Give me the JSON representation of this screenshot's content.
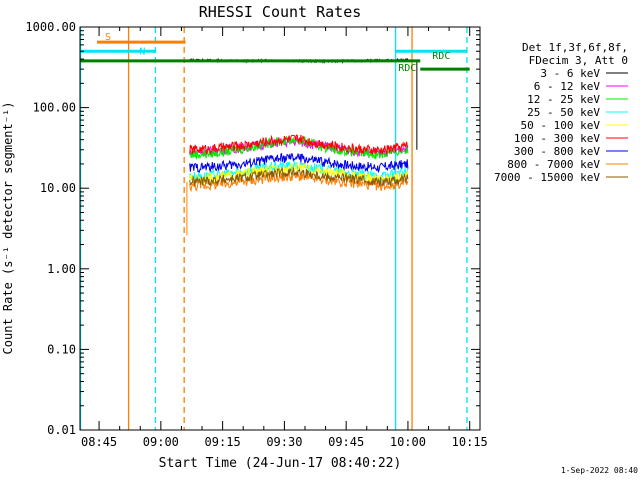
{
  "colors": {
    "background": "#ffffff",
    "axis": "#000000",
    "cyan": "#00e5ee",
    "orange": "#ff7f00",
    "dark_green": "#007f00"
  },
  "chart_data": {
    "type": "line",
    "title": "RHESSI Count Rates",
    "xlabel": "Start Time (24-Jun-17 08:40:22)",
    "ylabel": "Count Rate (s⁻¹ detector segment⁻¹)",
    "yscale": "log",
    "ylim": [
      0.01,
      1000
    ],
    "xlim": [
      "08:40:22",
      "10:17:30"
    ],
    "grid": false,
    "legend_position": "right",
    "legend_header": [
      "Det 1f,3f,6f,8f,",
      "FDecim 3, Att 0"
    ],
    "x_ticks": [
      "08:45",
      "09:00",
      "09:15",
      "09:30",
      "09:45",
      "10:00",
      "10:15"
    ],
    "y_ticks": [
      "0.01",
      "0.10",
      "1.00",
      "10.00",
      "100.00",
      "1000.00"
    ],
    "series": [
      {
        "name": "3 - 6 keV",
        "color": "#000000",
        "x": [
          "09:07",
          "09:13",
          "09:20",
          "09:27",
          "09:33",
          "09:40",
          "09:47",
          "09:53",
          "10:00"
        ],
        "values": [
          390,
          385,
          380,
          385,
          380,
          375,
          380,
          385,
          390
        ]
      },
      {
        "name": "6 - 12 keV",
        "color": "#ff00ff",
        "x": [
          "09:07",
          "09:13",
          "09:20",
          "09:27",
          "09:33",
          "09:40",
          "09:47",
          "09:53",
          "10:00"
        ],
        "values": [
          28,
          29,
          32,
          36,
          38,
          33,
          29,
          27,
          32
        ]
      },
      {
        "name": "12 - 25 keV",
        "color": "#00ee00",
        "x": [
          "09:07",
          "09:13",
          "09:20",
          "09:27",
          "09:33",
          "09:40",
          "09:47",
          "09:53",
          "10:00"
        ],
        "values": [
          26,
          27,
          31,
          37,
          40,
          32,
          28,
          26,
          30
        ]
      },
      {
        "name": "25 - 50 keV",
        "color": "#00ffff",
        "x": [
          "09:07",
          "09:13",
          "09:20",
          "09:27",
          "09:33",
          "09:40",
          "09:47",
          "09:53",
          "10:00"
        ],
        "values": [
          14,
          14.5,
          16,
          18.5,
          19,
          17,
          15,
          14,
          16
        ]
      },
      {
        "name": "50 - 100 keV",
        "color": "#ffff00",
        "x": [
          "09:07",
          "09:13",
          "09:20",
          "09:27",
          "09:33",
          "09:40",
          "09:47",
          "09:53",
          "10:00"
        ],
        "values": [
          13,
          13.5,
          15,
          17,
          18,
          16,
          14,
          13,
          14.5
        ]
      },
      {
        "name": "100 - 300 keV",
        "color": "#ff0000",
        "x": [
          "09:07",
          "09:13",
          "09:20",
          "09:27",
          "09:33",
          "09:40",
          "09:47",
          "09:53",
          "10:00"
        ],
        "values": [
          30,
          31,
          34,
          39,
          41,
          35,
          31,
          29,
          34
        ]
      },
      {
        "name": "300 - 800 keV",
        "color": "#0000ee",
        "x": [
          "09:07",
          "09:13",
          "09:20",
          "09:27",
          "09:33",
          "09:40",
          "09:47",
          "09:53",
          "10:00"
        ],
        "values": [
          18,
          18.5,
          20,
          23,
          24,
          21,
          19,
          18,
          20
        ]
      },
      {
        "name": "800 - 7000 keV",
        "color": "#ff7f00",
        "x": [
          "09:07",
          "09:13",
          "09:20",
          "09:27",
          "09:33",
          "09:40",
          "09:47",
          "09:53",
          "10:00"
        ],
        "values": [
          10.5,
          11,
          12,
          13.5,
          14,
          12.5,
          11.5,
          10.5,
          11.5
        ]
      },
      {
        "name": "7000 - 15000 keV",
        "color": "#8b5a00",
        "x": [
          "09:07",
          "09:13",
          "09:20",
          "09:27",
          "09:33",
          "09:40",
          "09:47",
          "09:53",
          "10:00"
        ],
        "values": [
          12,
          12.5,
          13.5,
          15,
          16,
          14,
          13,
          12,
          13
        ]
      }
    ],
    "vertical_lines": [
      {
        "time": "08:40:30",
        "style": "solid",
        "color": "#00e5ee"
      },
      {
        "time": "08:52:10",
        "style": "solid",
        "color": "#ff7f00"
      },
      {
        "time": "08:58:40",
        "style": "dashed",
        "color": "#00e5ee"
      },
      {
        "time": "09:05:40",
        "style": "dashed",
        "color": "#ff7f00"
      },
      {
        "time": "09:57:00",
        "style": "solid",
        "color": "#00e5ee"
      },
      {
        "time": "10:01:00",
        "style": "solid",
        "color": "#ff7f00"
      },
      {
        "time": "10:14:20",
        "style": "dashed",
        "color": "#00e5ee"
      }
    ],
    "flag_bars": [
      {
        "label": "S",
        "color": "#ff7f00",
        "start": "08:44:30",
        "end": "09:06:00",
        "level": 650
      },
      {
        "label": "N",
        "color": "#00e5ee",
        "start": "08:40:22",
        "end": "08:58:40",
        "level": 500
      },
      {
        "label": "",
        "color": "#00e5ee",
        "start": "09:57:00",
        "end": "10:14:20",
        "level": 500
      },
      {
        "label": "RDC",
        "color": "#007f00",
        "start": "08:40:22",
        "end": "10:03:00",
        "level": 380
      },
      {
        "label": "RDC",
        "color": "#007f00",
        "start": "10:03:00",
        "end": "10:15:00",
        "level": 300
      }
    ],
    "timestamp": "1-Sep-2022 08:40"
  }
}
